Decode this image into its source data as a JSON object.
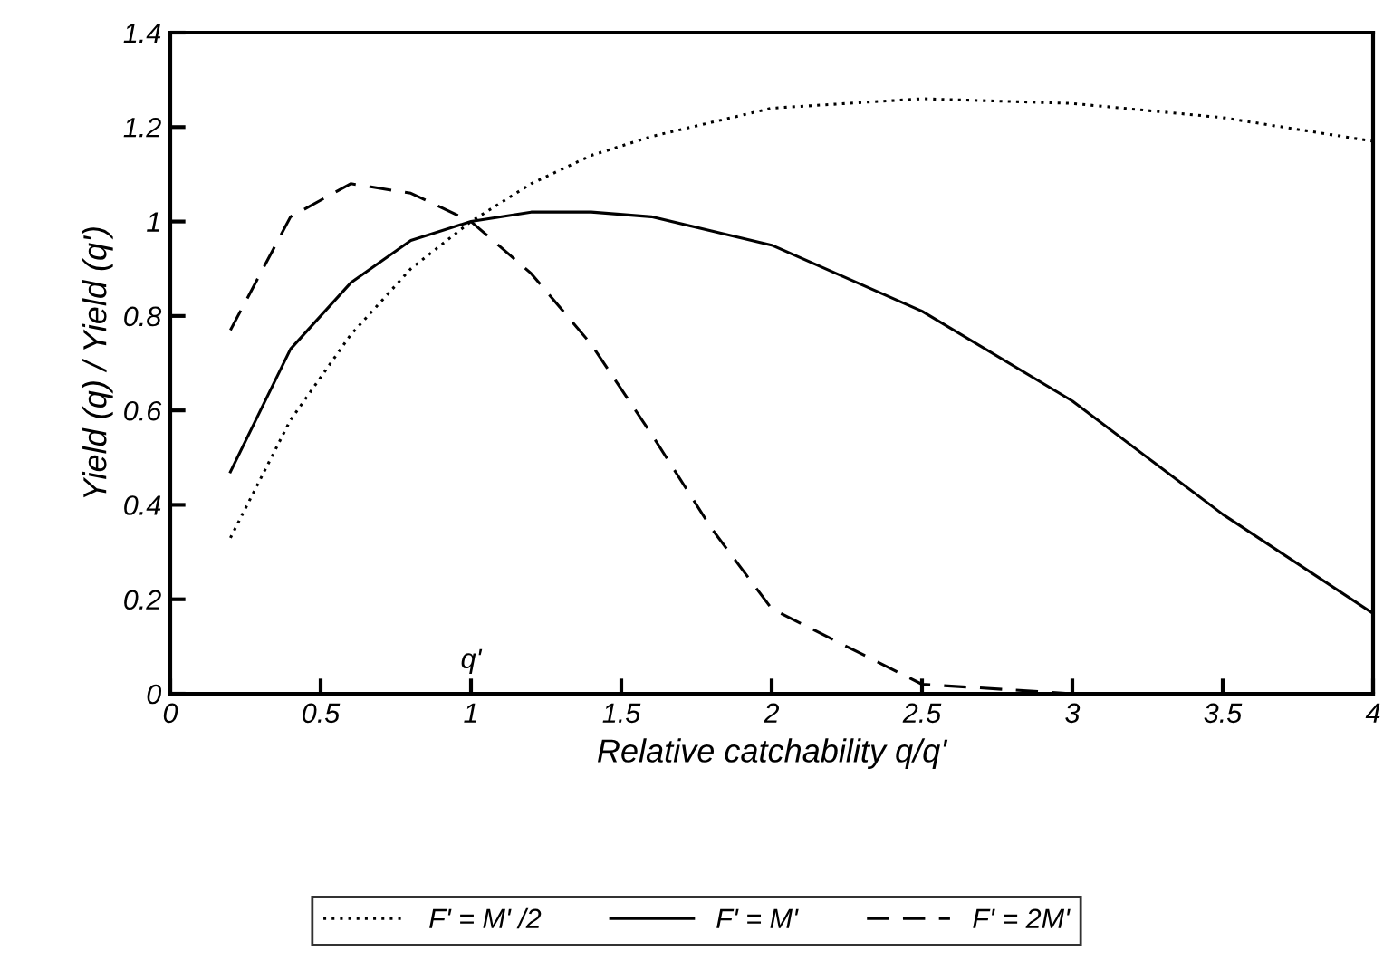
{
  "chart_data": {
    "type": "line",
    "xlabel": "Relative catchability q/q'",
    "ylabel": "Yield (q) / Yield (q')",
    "xlim": [
      0,
      4
    ],
    "xticks": [
      0,
      0.5,
      1,
      1.5,
      2,
      2.5,
      3,
      3.5,
      4
    ],
    "ylim": [
      0,
      1.4
    ],
    "yticks": [
      0,
      0.2,
      0.4,
      0.6,
      0.8,
      1,
      1.2,
      1.4
    ],
    "grid": false,
    "legend": "bottom",
    "marker": "none",
    "annotations": [
      "q'"
    ],
    "series": [
      {
        "name": "F' = M' /2",
        "color": "#000000",
        "line_style": "dotted",
        "x": [
          0.2,
          0.4,
          0.6,
          0.8,
          1,
          1.2,
          1.4,
          1.6,
          1.8,
          2,
          2.5,
          3,
          3.5,
          4
        ],
        "values": [
          0.33,
          0.58,
          0.76,
          0.9,
          1.0,
          1.08,
          1.14,
          1.18,
          1.21,
          1.24,
          1.26,
          1.25,
          1.22,
          1.17
        ]
      },
      {
        "name": "F' = M'",
        "color": "#000000",
        "line_style": "solid",
        "x": [
          0.2,
          0.4,
          0.6,
          0.8,
          1,
          1.2,
          1.4,
          1.6,
          1.8,
          2,
          2.5,
          3,
          3.5,
          4
        ],
        "values": [
          0.47,
          0.73,
          0.87,
          0.96,
          1.0,
          1.02,
          1.02,
          1.01,
          0.98,
          0.95,
          0.81,
          0.62,
          0.38,
          0.17
        ]
      },
      {
        "name": "F' = 2M'",
        "color": "#000000",
        "line_style": "dashed",
        "x": [
          0.2,
          0.4,
          0.6,
          0.8,
          1,
          1.2,
          1.4,
          1.6,
          1.8,
          2,
          2.5,
          3
        ],
        "values": [
          0.77,
          1.01,
          1.08,
          1.06,
          1.0,
          0.89,
          0.74,
          0.55,
          0.35,
          0.18,
          0.02,
          0.0
        ]
      }
    ]
  }
}
